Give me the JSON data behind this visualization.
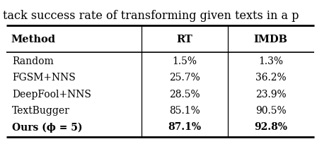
{
  "caption": "tack success rate of transforming given texts in a p",
  "col_headers": [
    "Method",
    "RT",
    "IMDB"
  ],
  "rows_display": [
    [
      "Random",
      "1.5%",
      "1.3%"
    ],
    [
      "FGSM+NNS",
      "25.7%",
      "36.2%"
    ],
    [
      "DeepFool+NNS",
      "28.5%",
      "23.9%"
    ],
    [
      "TextBugger",
      "85.1%",
      "90.5%"
    ],
    [
      "Ours (ϕ = 5)",
      "87.1%",
      "92.8%"
    ]
  ],
  "bold_last_row": true,
  "bg_color": "#ffffff",
  "text_color": "#000000",
  "font_size": 10.0,
  "header_font_size": 10.5,
  "caption_font_size": 11.5
}
